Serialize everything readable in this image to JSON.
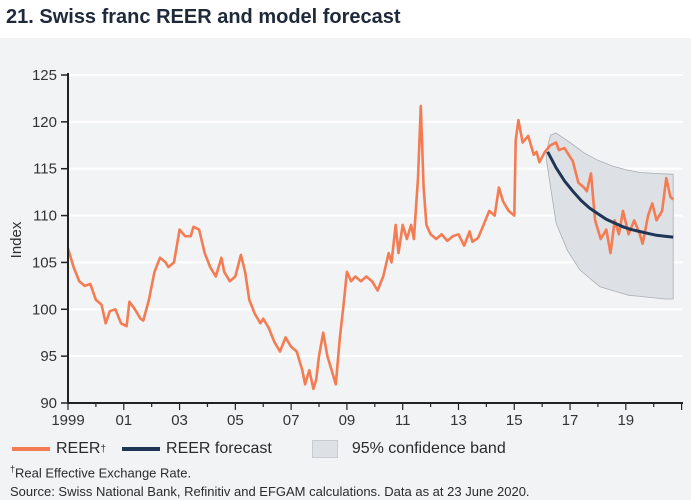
{
  "title": "21. Swiss franc REER and model forecast",
  "chart_data": {
    "type": "line",
    "title": "21. Swiss franc REER and model forecast",
    "ylabel": "Index",
    "xlabel": "",
    "ylim": [
      90,
      125
    ],
    "xlim": [
      1999,
      2021.05
    ],
    "yticks": [
      90,
      95,
      100,
      105,
      110,
      115,
      120,
      125
    ],
    "xticks": [
      {
        "x": 1999,
        "label": "1999"
      },
      {
        "x": 2001,
        "label": "01"
      },
      {
        "x": 2003,
        "label": "03"
      },
      {
        "x": 2005,
        "label": "05"
      },
      {
        "x": 2007,
        "label": "07"
      },
      {
        "x": 2009,
        "label": "09"
      },
      {
        "x": 2011,
        "label": "11"
      },
      {
        "x": 2013,
        "label": "13"
      },
      {
        "x": 2015,
        "label": "15"
      },
      {
        "x": 2017,
        "label": "17"
      },
      {
        "x": 2019,
        "label": "19"
      }
    ],
    "grid": "horizontal",
    "legend_position": "bottom",
    "colors": {
      "reer": "#f47c52",
      "forecast": "#1f3556",
      "band": "#dde1e5"
    },
    "series": [
      {
        "name": "REER†",
        "points": [
          [
            1999.0,
            106.5
          ],
          [
            1999.2,
            104.5
          ],
          [
            1999.4,
            103
          ],
          [
            1999.6,
            102.5
          ],
          [
            1999.8,
            102.7
          ],
          [
            2000.0,
            101
          ],
          [
            2000.2,
            100.5
          ],
          [
            2000.35,
            98.5
          ],
          [
            2000.5,
            99.8
          ],
          [
            2000.7,
            100
          ],
          [
            2000.9,
            98.5
          ],
          [
            2001.1,
            98.2
          ],
          [
            2001.2,
            100.8
          ],
          [
            2001.4,
            100
          ],
          [
            2001.6,
            99
          ],
          [
            2001.7,
            98.8
          ],
          [
            2001.9,
            101
          ],
          [
            2002.1,
            104
          ],
          [
            2002.3,
            105.5
          ],
          [
            2002.5,
            105
          ],
          [
            2002.6,
            104.5
          ],
          [
            2002.8,
            105
          ],
          [
            2003.0,
            108.5
          ],
          [
            2003.2,
            107.8
          ],
          [
            2003.4,
            107.8
          ],
          [
            2003.5,
            108.8
          ],
          [
            2003.7,
            108.5
          ],
          [
            2003.9,
            106
          ],
          [
            2004.1,
            104.5
          ],
          [
            2004.3,
            103.5
          ],
          [
            2004.5,
            105.5
          ],
          [
            2004.6,
            104
          ],
          [
            2004.8,
            103
          ],
          [
            2005.0,
            103.5
          ],
          [
            2005.2,
            105.8
          ],
          [
            2005.35,
            104
          ],
          [
            2005.5,
            101
          ],
          [
            2005.7,
            99.5
          ],
          [
            2005.9,
            98.5
          ],
          [
            2006.0,
            99
          ],
          [
            2006.2,
            98
          ],
          [
            2006.4,
            96.5
          ],
          [
            2006.6,
            95.5
          ],
          [
            2006.8,
            97
          ],
          [
            2007.0,
            96
          ],
          [
            2007.2,
            95.5
          ],
          [
            2007.4,
            93.5
          ],
          [
            2007.5,
            92
          ],
          [
            2007.65,
            93.5
          ],
          [
            2007.8,
            91.5
          ],
          [
            2007.9,
            92.5
          ],
          [
            2008.0,
            95
          ],
          [
            2008.15,
            97.5
          ],
          [
            2008.3,
            95
          ],
          [
            2008.5,
            93
          ],
          [
            2008.6,
            92
          ],
          [
            2008.75,
            97
          ],
          [
            2008.9,
            101
          ],
          [
            2009.0,
            104
          ],
          [
            2009.15,
            103
          ],
          [
            2009.3,
            103.5
          ],
          [
            2009.5,
            103
          ],
          [
            2009.7,
            103.5
          ],
          [
            2009.9,
            103
          ],
          [
            2010.1,
            102
          ],
          [
            2010.3,
            103.5
          ],
          [
            2010.5,
            106
          ],
          [
            2010.6,
            105
          ],
          [
            2010.75,
            109
          ],
          [
            2010.85,
            106
          ],
          [
            2011.0,
            109
          ],
          [
            2011.15,
            107.5
          ],
          [
            2011.3,
            109
          ],
          [
            2011.4,
            107.5
          ],
          [
            2011.55,
            114
          ],
          [
            2011.65,
            121.7
          ],
          [
            2011.75,
            113
          ],
          [
            2011.85,
            109
          ],
          [
            2012.0,
            108
          ],
          [
            2012.2,
            107.5
          ],
          [
            2012.4,
            108
          ],
          [
            2012.6,
            107.3
          ],
          [
            2012.8,
            107.8
          ],
          [
            2013.0,
            108
          ],
          [
            2013.2,
            106.8
          ],
          [
            2013.4,
            108.3
          ],
          [
            2013.5,
            107.2
          ],
          [
            2013.7,
            107.6
          ],
          [
            2013.9,
            109
          ],
          [
            2014.1,
            110.5
          ],
          [
            2014.3,
            110
          ],
          [
            2014.45,
            113
          ],
          [
            2014.6,
            111.5
          ],
          [
            2014.8,
            110.5
          ],
          [
            2015.0,
            110
          ],
          [
            2015.05,
            118
          ],
          [
            2015.15,
            120.2
          ],
          [
            2015.3,
            117.8
          ],
          [
            2015.5,
            118.5
          ],
          [
            2015.7,
            116.5
          ],
          [
            2015.8,
            116.8
          ],
          [
            2015.9,
            115.7
          ],
          [
            2016.1,
            116.8
          ],
          [
            2016.3,
            117.5
          ],
          [
            2016.5,
            117.8
          ],
          [
            2016.6,
            117
          ],
          [
            2016.8,
            117.2
          ],
          [
            2016.95,
            116.5
          ],
          [
            2017.1,
            115.8
          ],
          [
            2017.3,
            113.5
          ],
          [
            2017.5,
            113
          ],
          [
            2017.6,
            112.6
          ],
          [
            2017.75,
            114.5
          ],
          [
            2017.9,
            109.5
          ],
          [
            2018.1,
            107.5
          ],
          [
            2018.3,
            108.5
          ],
          [
            2018.45,
            106
          ],
          [
            2018.6,
            109.5
          ],
          [
            2018.75,
            108
          ],
          [
            2018.9,
            110.5
          ],
          [
            2019.1,
            108
          ],
          [
            2019.3,
            109.5
          ],
          [
            2019.5,
            108
          ],
          [
            2019.6,
            107
          ],
          [
            2019.8,
            110
          ],
          [
            2019.95,
            111.3
          ],
          [
            2020.1,
            109.5
          ],
          [
            2020.3,
            110.5
          ],
          [
            2020.45,
            114
          ],
          [
            2020.6,
            112
          ],
          [
            2020.7,
            111.7
          ]
        ]
      },
      {
        "name": "REER forecast",
        "points": [
          [
            2016.2,
            116.8
          ],
          [
            2016.5,
            115.1
          ],
          [
            2016.8,
            113.7
          ],
          [
            2017.1,
            112.6
          ],
          [
            2017.4,
            111.6
          ],
          [
            2017.7,
            110.8
          ],
          [
            2018.0,
            110.2
          ],
          [
            2018.3,
            109.6
          ],
          [
            2018.6,
            109.2
          ],
          [
            2018.9,
            108.8
          ],
          [
            2019.2,
            108.5
          ],
          [
            2019.5,
            108.3
          ],
          [
            2019.8,
            108.1
          ],
          [
            2020.1,
            107.9
          ],
          [
            2020.4,
            107.8
          ],
          [
            2020.7,
            107.7
          ]
        ]
      },
      {
        "name": "95% confidence band",
        "upper": [
          [
            2016.15,
            116.8
          ],
          [
            2016.3,
            118.6
          ],
          [
            2016.5,
            118.8
          ],
          [
            2017.0,
            117.8
          ],
          [
            2017.5,
            116.7
          ],
          [
            2018.0,
            115.9
          ],
          [
            2018.5,
            115.3
          ],
          [
            2019.0,
            114.9
          ],
          [
            2019.5,
            114.6
          ],
          [
            2020.0,
            114.5
          ],
          [
            2020.7,
            114.4
          ]
        ],
        "lower": [
          [
            2016.15,
            116.0
          ],
          [
            2016.5,
            109.2
          ],
          [
            2016.9,
            106.3
          ],
          [
            2017.35,
            104.2
          ],
          [
            2018.07,
            102.4
          ],
          [
            2019.1,
            101.5
          ],
          [
            2020.4,
            101.1
          ],
          [
            2020.7,
            101.1
          ]
        ]
      }
    ]
  },
  "legend": {
    "reer": "REER",
    "reer_sup": "†",
    "forecast": "REER forecast",
    "band": "95% confidence band"
  },
  "footnote": {
    "mark": "†",
    "text": "Real Effective Exchange Rate."
  },
  "source": "Source: Swiss National Bank, Refinitiv and EFGAM calculations. Data as at 23 June 2020."
}
